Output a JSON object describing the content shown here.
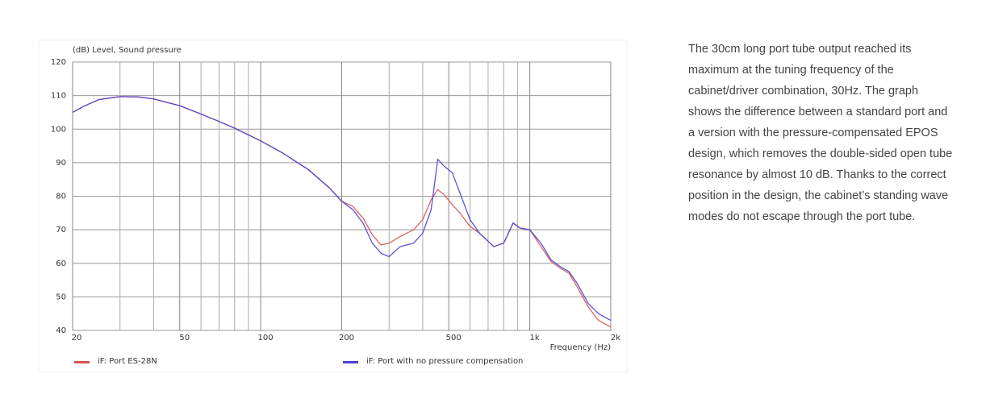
{
  "chart_data": {
    "type": "line",
    "ylabel": "(dB)  Level, Sound pressure",
    "xlabel": "Frequency  (Hz)",
    "xscale": "log",
    "xlim": [
      20,
      2000
    ],
    "ylim": [
      40,
      120
    ],
    "xticks": [
      20,
      50,
      100,
      200,
      500,
      {
        "value": 1000,
        "label": "1k"
      },
      {
        "value": 2000,
        "label": "2k"
      }
    ],
    "xminor": [
      30,
      40,
      60,
      70,
      80,
      90,
      300,
      400,
      600,
      700,
      800,
      900
    ],
    "yticks": [
      40,
      50,
      60,
      70,
      80,
      90,
      100,
      110,
      120
    ],
    "grid": true,
    "legend": "bottom",
    "x": [
      20,
      22,
      25,
      30,
      35,
      40,
      50,
      60,
      70,
      80,
      100,
      120,
      150,
      180,
      200,
      220,
      240,
      260,
      280,
      300,
      330,
      370,
      400,
      430,
      455,
      480,
      515,
      550,
      600,
      650,
      735,
      800,
      867,
      920,
      1000,
      1100,
      1200,
      1300,
      1400,
      1500,
      1650,
      1800,
      2000
    ],
    "series": [
      {
        "name": "iF: Port ES-28N",
        "color": "#d9534f",
        "values": [
          105,
          106.8,
          108.8,
          109.7,
          109.6,
          109,
          107,
          104.5,
          102.3,
          100.3,
          96.5,
          93,
          88,
          82.5,
          78.5,
          77,
          73.5,
          68.5,
          65.5,
          66,
          68,
          70,
          73,
          79,
          82,
          80.5,
          77.5,
          75,
          71,
          69,
          65,
          66,
          72,
          70.5,
          70,
          65,
          60.5,
          58.5,
          57,
          53,
          47,
          43,
          41
        ]
      },
      {
        "name": "iF: Port with no pressure compensation",
        "color": "#4b3fd6",
        "values": [
          105,
          106.8,
          108.8,
          109.7,
          109.6,
          109,
          107,
          104.5,
          102.3,
          100.3,
          96.5,
          93,
          88,
          82.5,
          78.5,
          76,
          72,
          66,
          63,
          62,
          65,
          66,
          69,
          76,
          91,
          89,
          87,
          81,
          73,
          69,
          65,
          66,
          72,
          70.5,
          70,
          66,
          61,
          59,
          57.5,
          54,
          48,
          45,
          43
        ]
      }
    ]
  },
  "paragraph": "The 30cm long port tube output reached its maximum at the tuning frequency of the cabinet/driver combination, 30Hz. The graph shows the difference between a standard port and a version with the pressure-compensated EPOS design, which removes the double-sided open tube resonance by almost 10 dB. Thanks to the correct position in the design, the cabinet’s standing wave modes do not escape through the port tube."
}
